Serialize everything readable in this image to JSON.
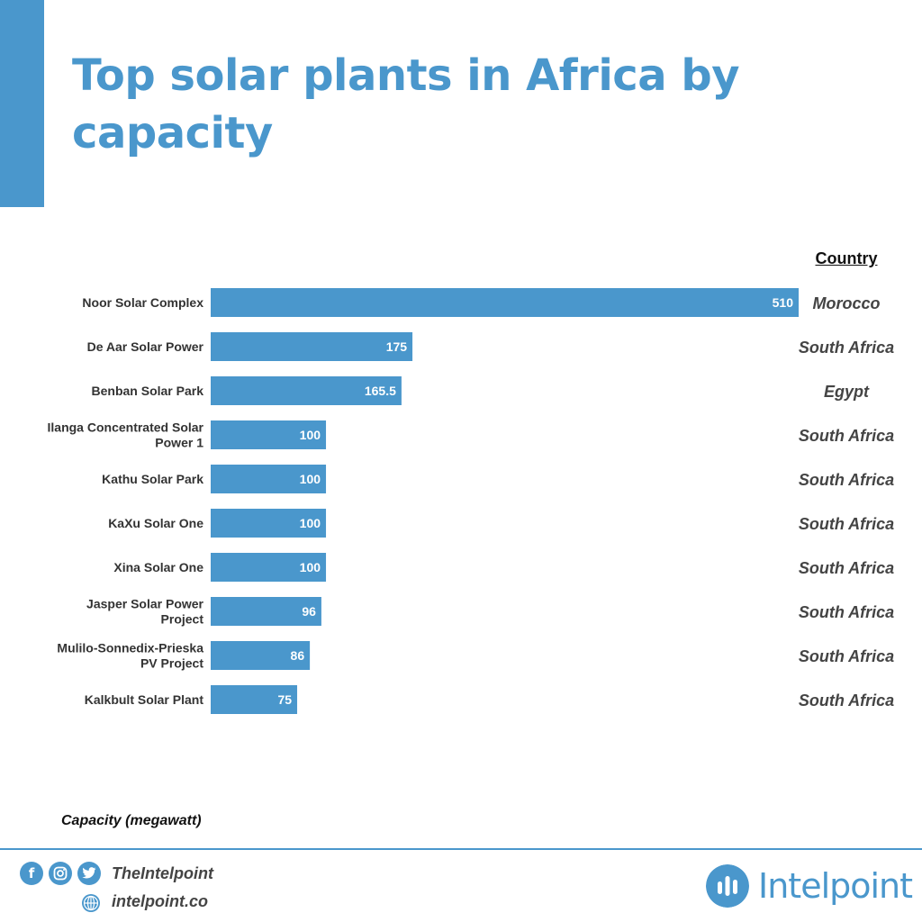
{
  "colors": {
    "accent": "#4a97cc",
    "bar": "#4a97cc",
    "text": "#333333"
  },
  "title": "Top solar plants in Africa by capacity",
  "country_header": "Country",
  "xlabel": "Capacity (megawatt)",
  "footer": {
    "social_icons": [
      "facebook-icon",
      "instagram-icon",
      "twitter-icon"
    ],
    "handle": "TheIntelpoint",
    "website": "intelpoint.co",
    "brand": "Intelpoint"
  },
  "chart_data": {
    "type": "bar",
    "orientation": "horizontal",
    "categories": [
      "Noor Solar Complex",
      "De Aar Solar Power",
      "Benban Solar Park",
      "Ilanga Concentrated Solar Power 1",
      "Kathu Solar Park",
      "KaXu Solar One",
      "Xina Solar One",
      "Jasper Solar Power Project",
      "Mulilo-Sonnedix-Prieska PV Project",
      "Kalkbult Solar Plant"
    ],
    "category_lines": [
      [
        "Noor Solar Complex"
      ],
      [
        "De Aar Solar Power"
      ],
      [
        "Benban Solar Park"
      ],
      [
        "Ilanga Concentrated Solar",
        "Power 1"
      ],
      [
        "Kathu Solar Park"
      ],
      [
        "KaXu Solar One"
      ],
      [
        "Xina Solar One"
      ],
      [
        "Jasper Solar Power",
        "Project"
      ],
      [
        "Mulilo-Sonnedix-Prieska",
        "PV Project"
      ],
      [
        "Kalkbult Solar Plant"
      ]
    ],
    "values": [
      510,
      175,
      165.5,
      100,
      100,
      100,
      100,
      96,
      86,
      75
    ],
    "value_labels": [
      "510",
      "175",
      "165.5",
      "100",
      "100",
      "100",
      "100",
      "96",
      "86",
      "75"
    ],
    "countries": [
      "Morocco",
      "South Africa",
      "Egypt",
      "South Africa",
      "South Africa",
      "South Africa",
      "South Africa",
      "South Africa",
      "South Africa",
      "South Africa"
    ],
    "title": "Top solar plants in Africa by capacity",
    "xlabel": "Capacity (megawatt)",
    "ylabel": "",
    "xlim": [
      0,
      510
    ],
    "grid": false,
    "legend": "none"
  }
}
